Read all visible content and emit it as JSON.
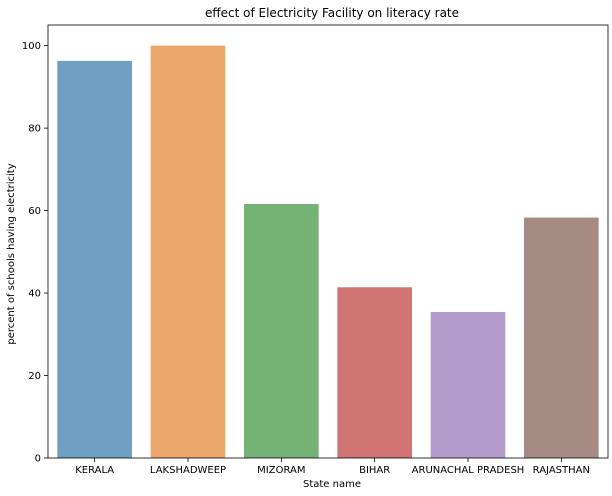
{
  "chart_data": {
    "type": "bar",
    "title": "effect of Electricity Facility on literacy rate",
    "xlabel": "State name",
    "ylabel": "percent of schools having electricity",
    "categories": [
      "KERALA",
      "LAKSHADWEEP",
      "MIZORAM",
      "BIHAR",
      "ARUNACHAL PRADESH",
      "RAJASTHAN"
    ],
    "values": [
      96.3,
      100.0,
      61.6,
      41.4,
      35.4,
      58.3
    ],
    "colors": [
      "#6f9fc2",
      "#e9a76b",
      "#75b275",
      "#d07474",
      "#b39bcb",
      "#a68b82"
    ],
    "ylim": [
      0,
      105
    ],
    "yticks": [
      0,
      20,
      40,
      60,
      80,
      100
    ],
    "grid": false,
    "legend": "none"
  }
}
